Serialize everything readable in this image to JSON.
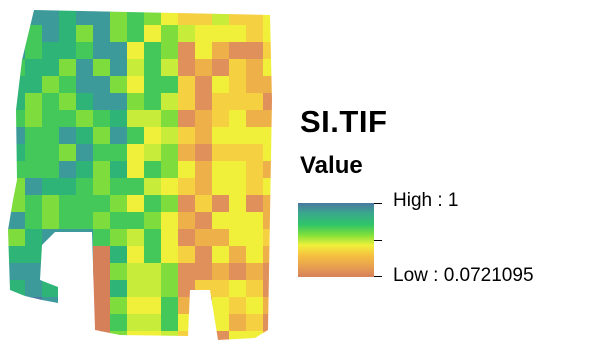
{
  "legend": {
    "title": "SI.TIF",
    "heading": "Value",
    "high_label": "High : 1",
    "low_label": "Low : 0.0721095",
    "ramp_colors": [
      "#4a78a0",
      "#3aa88c",
      "#2fc46a",
      "#7fe03a",
      "#f0f03a",
      "#f5c040",
      "#e8a050",
      "#d6805a"
    ]
  },
  "map": {
    "description_colors": {
      "high": "#4a78a0",
      "mid": "#f0f03a",
      "low": "#d6805a"
    }
  }
}
